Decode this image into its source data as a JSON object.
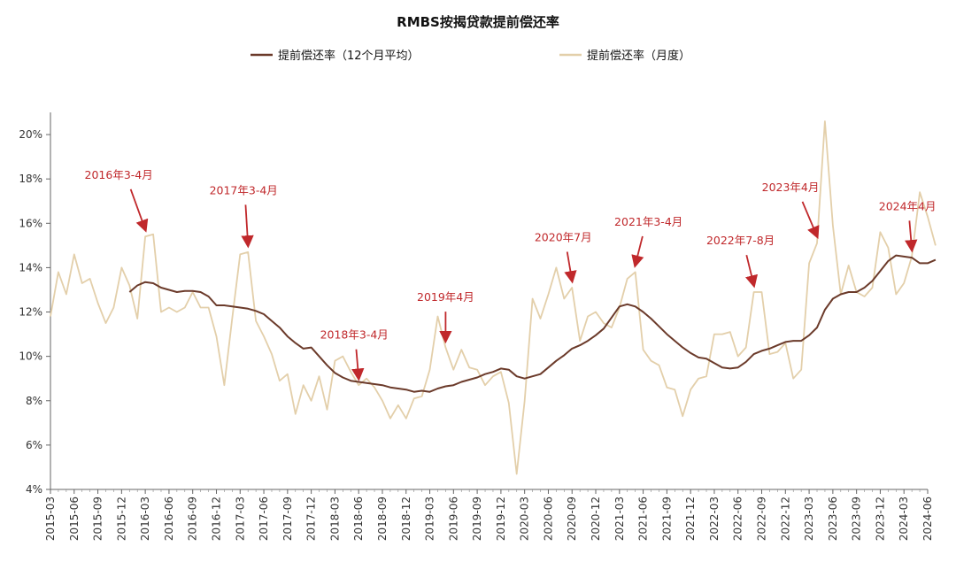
{
  "chart_data": {
    "type": "line",
    "title": "RMBS按揭贷款提前偿还率",
    "ylim": [
      4,
      21
    ],
    "yticks": [
      "4%",
      "6%",
      "8%",
      "10%",
      "12%",
      "14%",
      "16%",
      "18%",
      "20%"
    ],
    "ytick_values": [
      4,
      6,
      8,
      10,
      12,
      14,
      16,
      18,
      20
    ],
    "x_start": "2015-03",
    "x_end": "2024-06",
    "xticks": [
      "2015-03",
      "2015-06",
      "2015-09",
      "2015-12",
      "2016-03",
      "2016-06",
      "2016-09",
      "2016-12",
      "2017-03",
      "2017-06",
      "2017-09",
      "2017-12",
      "2018-03",
      "2018-06",
      "2018-09",
      "2018-12",
      "2019-03",
      "2019-06",
      "2019-09",
      "2019-12",
      "2020-03",
      "2020-06",
      "2020-09",
      "2020-12",
      "2021-03",
      "2021-06",
      "2021-09",
      "2021-12",
      "2022-03",
      "2022-06",
      "2022-09",
      "2022-12",
      "2023-03",
      "2023-06",
      "2023-09",
      "2023-12",
      "2024-03",
      "2024-06"
    ],
    "legend": {
      "position": "top"
    },
    "series": [
      {
        "name": "提前偿还率（12个月平均）",
        "color": "#6b3a2a",
        "start": "2016-01",
        "values": [
          12.9,
          13.2,
          13.35,
          13.3,
          13.1,
          13.0,
          12.9,
          12.95,
          12.95,
          12.9,
          12.7,
          12.3,
          12.3,
          12.25,
          12.2,
          12.15,
          12.05,
          11.9,
          11.6,
          11.3,
          10.9,
          10.6,
          10.35,
          10.4,
          10.0,
          9.6,
          9.25,
          9.05,
          8.9,
          8.85,
          8.8,
          8.75,
          8.7,
          8.6,
          8.55,
          8.5,
          8.4,
          8.45,
          8.4,
          8.55,
          8.65,
          8.7,
          8.85,
          8.95,
          9.05,
          9.2,
          9.3,
          9.45,
          9.4,
          9.1,
          9.0,
          9.1,
          9.2,
          9.5,
          9.8,
          10.05,
          10.35,
          10.5,
          10.7,
          10.95,
          11.25,
          11.75,
          12.25,
          12.35,
          12.25,
          12.0,
          11.7,
          11.35,
          11.0,
          10.7,
          10.4,
          10.15,
          9.95,
          9.9,
          9.7,
          9.5,
          9.45,
          9.5,
          9.75,
          10.1,
          10.25,
          10.35,
          10.5,
          10.65,
          10.7,
          10.7,
          10.95,
          11.3,
          12.1,
          12.6,
          12.8,
          12.9,
          12.9,
          13.1,
          13.4,
          13.85,
          14.3,
          14.55,
          14.5,
          14.45,
          14.2,
          14.2,
          14.35
        ]
      },
      {
        "name": "提前偿还率（月度）",
        "color": "#e3cfaa",
        "start": "2015-03",
        "values": [
          11.8,
          13.8,
          12.8,
          14.6,
          13.3,
          13.5,
          12.4,
          11.5,
          12.2,
          14.0,
          13.2,
          11.7,
          15.4,
          15.5,
          12.0,
          12.2,
          12.0,
          12.2,
          12.9,
          12.2,
          12.2,
          10.9,
          8.7,
          11.7,
          14.6,
          14.7,
          11.6,
          10.9,
          10.1,
          8.9,
          9.2,
          7.4,
          8.7,
          8.0,
          9.1,
          7.6,
          9.8,
          10.0,
          9.3,
          8.7,
          9.0,
          8.6,
          8.0,
          7.2,
          7.8,
          7.2,
          8.1,
          8.2,
          9.4,
          11.8,
          10.4,
          9.4,
          10.3,
          9.5,
          9.4,
          8.7,
          9.1,
          9.3,
          7.9,
          4.7,
          8.0,
          12.6,
          11.7,
          12.8,
          14.0,
          12.6,
          13.1,
          10.7,
          11.8,
          12.0,
          11.5,
          11.3,
          12.2,
          13.5,
          13.8,
          10.3,
          9.8,
          9.6,
          8.6,
          8.5,
          7.3,
          8.5,
          9.0,
          9.1,
          11.0,
          11.0,
          11.1,
          10.0,
          10.4,
          12.9,
          12.9,
          10.1,
          10.2,
          10.6,
          9.0,
          9.4,
          14.2,
          15.1,
          20.6,
          15.9,
          12.8,
          14.1,
          12.9,
          12.7,
          13.1,
          15.6,
          14.9,
          12.8,
          13.3,
          14.5,
          17.4,
          16.3,
          15.0
        ]
      }
    ],
    "annotations": [
      {
        "text": "2016年3-4月",
        "date": "2016-03"
      },
      {
        "text": "2017年3-4月",
        "date": "2017-04"
      },
      {
        "text": "2018年3-4月",
        "date": "2018-06"
      },
      {
        "text": "2019年4月",
        "date": "2019-05"
      },
      {
        "text": "2020年7月",
        "date": "2020-09"
      },
      {
        "text": "2021年3-4月",
        "date": "2021-05"
      },
      {
        "text": "2022年7-8月",
        "date": "2022-08"
      },
      {
        "text": "2023年4月",
        "date": "2023-04"
      },
      {
        "text": "2024年4月",
        "date": "2024-04"
      }
    ],
    "annotation_color": "#c0282b"
  }
}
